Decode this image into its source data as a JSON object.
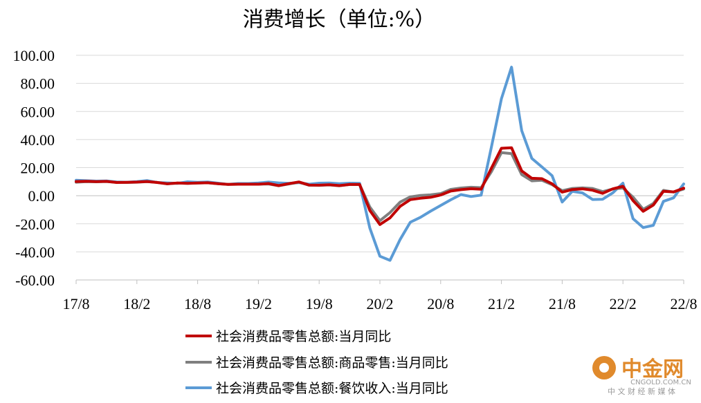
{
  "chart_data": {
    "type": "line",
    "title": "消费增长（单位:%）",
    "xlabel": "",
    "ylabel": "",
    "ylim": [
      -60,
      100
    ],
    "y_ticks": [
      100,
      80,
      60,
      40,
      20,
      0,
      -20,
      -40,
      -60
    ],
    "y_tick_labels": [
      "100.00",
      "80.00",
      "60.00",
      "40.00",
      "20.00",
      "0.00",
      "-20.00",
      "-40.00",
      "-60.00"
    ],
    "x_tick_labels": [
      "17/8",
      "18/2",
      "18/8",
      "19/2",
      "19/8",
      "20/2",
      "20/8",
      "21/2",
      "21/8",
      "22/2",
      "22/8"
    ],
    "grid": "horizontal",
    "legend_position": "bottom",
    "x": [
      "17/8",
      "17/9",
      "17/10",
      "17/11",
      "17/12",
      "18/1",
      "18/2",
      "18/3",
      "18/4",
      "18/5",
      "18/6",
      "18/7",
      "18/8",
      "18/9",
      "18/10",
      "18/11",
      "18/12",
      "19/1",
      "19/2",
      "19/3",
      "19/4",
      "19/5",
      "19/6",
      "19/7",
      "19/8",
      "19/9",
      "19/10",
      "19/11",
      "19/12",
      "20/1",
      "20/2",
      "20/3",
      "20/4",
      "20/5",
      "20/6",
      "20/7",
      "20/8",
      "20/9",
      "20/10",
      "20/11",
      "20/12",
      "21/1",
      "21/2",
      "21/3",
      "21/4",
      "21/5",
      "21/6",
      "21/7",
      "21/8",
      "21/9",
      "21/10",
      "21/11",
      "21/12",
      "22/1",
      "22/2",
      "22/3",
      "22/4",
      "22/5",
      "22/6",
      "22/7",
      "22/8"
    ],
    "series": [
      {
        "name": "社会消费品零售总额:当月同比",
        "color": "#c00000",
        "values": [
          10.1,
          10.3,
          10.0,
          10.2,
          9.4,
          9.5,
          9.7,
          10.1,
          9.4,
          8.5,
          9.0,
          8.8,
          9.0,
          9.2,
          8.6,
          8.1,
          8.2,
          8.2,
          8.2,
          8.7,
          7.2,
          8.6,
          9.8,
          7.6,
          7.5,
          7.8,
          7.2,
          8.0,
          8.0,
          -10.5,
          -20.5,
          -15.8,
          -7.5,
          -2.8,
          -1.8,
          -1.1,
          0.5,
          3.3,
          4.3,
          5.0,
          4.6,
          19.5,
          33.8,
          34.2,
          17.7,
          12.4,
          12.1,
          8.5,
          2.5,
          4.4,
          4.9,
          3.9,
          1.7,
          4.9,
          6.7,
          -3.5,
          -11.1,
          -6.7,
          3.1,
          2.7,
          5.4
        ]
      },
      {
        "name": "社会消费品零售总额:商品零售:当月同比",
        "color": "#7f7f7f",
        "values": [
          9.6,
          10.0,
          9.9,
          10.1,
          9.5,
          9.4,
          9.6,
          10.0,
          9.5,
          8.5,
          9.0,
          8.8,
          9.0,
          9.2,
          8.6,
          8.1,
          8.2,
          8.2,
          8.2,
          8.4,
          7.1,
          8.4,
          9.6,
          7.5,
          7.4,
          7.7,
          7.1,
          8.0,
          8.0,
          -8.0,
          -17.8,
          -12.0,
          -4.5,
          -0.8,
          0.2,
          0.6,
          1.5,
          4.5,
          5.5,
          6.0,
          5.7,
          17.0,
          30.7,
          30.0,
          15.1,
          10.6,
          11.0,
          7.9,
          3.6,
          5.2,
          5.6,
          5.2,
          2.9,
          4.8,
          5.5,
          -1.0,
          -9.7,
          -5.5,
          3.8,
          2.6,
          4.8
        ]
      },
      {
        "name": "社会消费品零售总额:餐饮收入:当月同比",
        "color": "#5b9bd5",
        "values": [
          11.0,
          10.7,
          10.4,
          10.5,
          9.8,
          9.6,
          10.0,
          10.8,
          9.4,
          9.1,
          8.8,
          9.9,
          9.5,
          9.8,
          8.9,
          8.1,
          8.7,
          8.7,
          9.0,
          9.7,
          9.1,
          8.8,
          9.3,
          8.2,
          8.9,
          9.0,
          8.6,
          8.9,
          8.8,
          -23.0,
          -43.1,
          -46.0,
          -31.1,
          -18.9,
          -15.4,
          -11.0,
          -7.0,
          -2.9,
          0.8,
          -0.6,
          0.4,
          34.4,
          69.1,
          91.6,
          46.4,
          26.6,
          20.5,
          14.3,
          -4.5,
          3.1,
          2.0,
          -2.7,
          -2.5,
          2.1,
          8.9,
          -16.4,
          -22.7,
          -21.1,
          -4.0,
          -1.5,
          8.4
        ]
      }
    ]
  },
  "legend": {
    "items": [
      "社会消费品零售总额:当月同比",
      "社会消费品零售总额:商品零售:当月同比",
      "社会消费品零售总额:餐饮收入:当月同比"
    ]
  },
  "watermark": {
    "brand": "中金网",
    "domain": "CNGOLD.COM.CN",
    "tagline": "中 文 财 经 新 媒 体",
    "color": "#e08a2c"
  }
}
